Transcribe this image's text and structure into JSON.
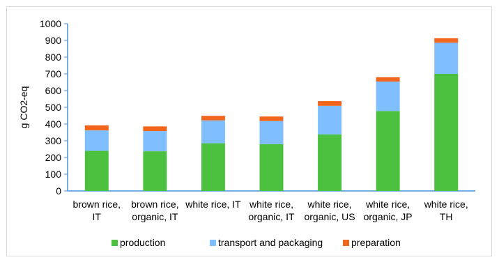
{
  "chart_data": {
    "type": "bar",
    "stacked": true,
    "categories": [
      [
        "brown rice,",
        "IT"
      ],
      [
        "brown rice,",
        "organic, IT"
      ],
      [
        "white rice, IT"
      ],
      [
        "white rice,",
        "organic, IT"
      ],
      [
        "white rice,",
        "organic, US"
      ],
      [
        "white rice,",
        "organic, JP"
      ],
      [
        "white rice,",
        "TH"
      ]
    ],
    "series": [
      {
        "name": "production",
        "color": "#4cc13f",
        "values": [
          240,
          237,
          285,
          280,
          338,
          478,
          700
        ]
      },
      {
        "name": "transport and packaging",
        "color": "#7fbfff",
        "values": [
          122,
          121,
          137,
          138,
          171,
          176,
          186
        ]
      },
      {
        "name": "preparation",
        "color": "#f2651c",
        "values": [
          30,
          28,
          27,
          27,
          28,
          26,
          27
        ]
      }
    ],
    "ylabel": "g CO2-eq",
    "ylim": [
      0,
      1000
    ],
    "yticks": [
      0,
      100,
      200,
      300,
      400,
      500,
      600,
      700,
      800,
      900,
      1000
    ],
    "grid": false,
    "legend": "bottom"
  }
}
